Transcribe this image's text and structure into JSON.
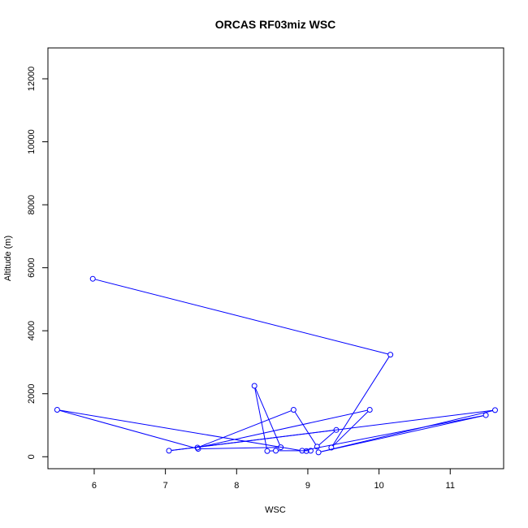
{
  "chart_data": {
    "type": "line",
    "title": "ORCAS RF03miz WSC",
    "xlabel": "WSC",
    "ylabel": "Altitude (m)",
    "xlim": [
      5.35,
      11.75
    ],
    "ylim": [
      -380,
      12980
    ],
    "x_ticks": [
      6,
      7,
      8,
      9,
      10,
      11
    ],
    "y_ticks": [
      0,
      2000,
      4000,
      6000,
      8000,
      10000,
      12000
    ],
    "grid": false,
    "legend": "none",
    "series": [
      {
        "color": "#0000ff",
        "marker": "open-circle",
        "points": [
          {
            "x": 5.98,
            "y": 5650
          },
          {
            "x": 10.16,
            "y": 3240
          },
          {
            "x": 9.33,
            "y": 290
          },
          {
            "x": 9.87,
            "y": 1490
          },
          {
            "x": 7.45,
            "y": 290
          },
          {
            "x": 8.8,
            "y": 1490
          },
          {
            "x": 9.13,
            "y": 320
          },
          {
            "x": 9.4,
            "y": 850
          },
          {
            "x": 7.05,
            "y": 190
          },
          {
            "x": 11.63,
            "y": 1480
          },
          {
            "x": 9.15,
            "y": 140
          },
          {
            "x": 11.5,
            "y": 1320
          },
          {
            "x": 8.92,
            "y": 190
          },
          {
            "x": 5.48,
            "y": 1490
          },
          {
            "x": 7.46,
            "y": 250
          },
          {
            "x": 8.62,
            "y": 300
          },
          {
            "x": 8.25,
            "y": 2250
          },
          {
            "x": 8.43,
            "y": 180
          },
          {
            "x": 8.55,
            "y": 190
          },
          {
            "x": 9.04,
            "y": 190
          },
          {
            "x": 8.98,
            "y": 180
          }
        ]
      }
    ]
  }
}
